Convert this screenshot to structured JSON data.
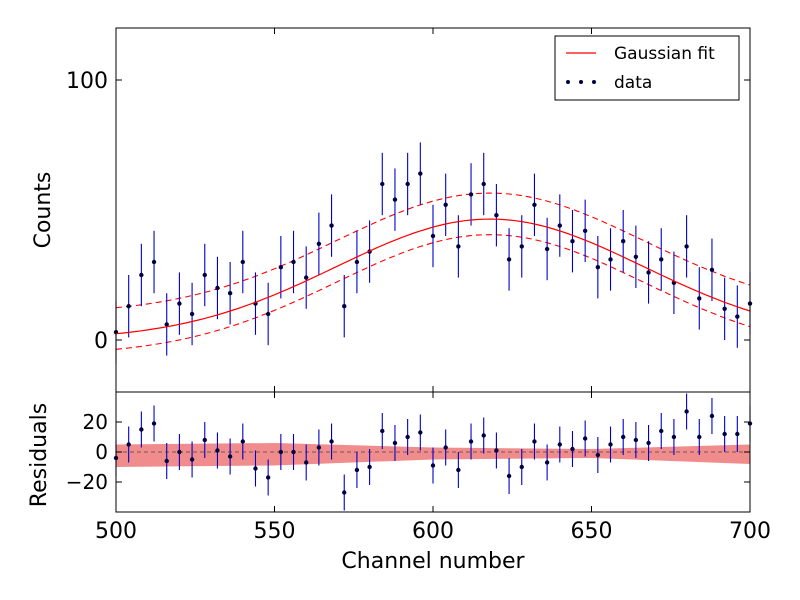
{
  "chart_data": [
    {
      "type": "scatter",
      "panel": "main",
      "title": "",
      "xlabel": "",
      "ylabel": "Counts",
      "xlim": [
        500,
        700
      ],
      "ylim": [
        -20,
        120
      ],
      "yticks": [
        0,
        100
      ],
      "grid": false,
      "legend": {
        "placement": "top-right",
        "entries": [
          "Gaussian fit",
          "data"
        ]
      },
      "series": [
        {
          "name": "data",
          "style": "points with vertical error bars",
          "x": [
            500,
            504,
            508,
            512,
            516,
            520,
            524,
            528,
            532,
            536,
            540,
            544,
            548,
            552,
            556,
            560,
            564,
            568,
            572,
            576,
            580,
            584,
            588,
            592,
            596,
            600,
            604,
            608,
            612,
            616,
            620,
            624,
            628,
            632,
            636,
            640,
            644,
            648,
            652,
            656,
            660,
            664,
            668,
            672,
            676,
            680,
            684,
            688,
            692,
            696,
            700
          ],
          "values": [
            3,
            13,
            25,
            30,
            6,
            14,
            10,
            25,
            20,
            18,
            30,
            14,
            10,
            28,
            30,
            24,
            37,
            44,
            13,
            30,
            34,
            60,
            54,
            60,
            64,
            40,
            52,
            36,
            56,
            60,
            48,
            31,
            36,
            52,
            35,
            44,
            38,
            42,
            28,
            31,
            38,
            32,
            26,
            31,
            22,
            36,
            16,
            27,
            12,
            9,
            14
          ],
          "yerr": [
            12,
            12,
            12,
            12,
            12,
            12,
            12,
            12,
            12,
            12,
            12,
            12,
            12,
            12,
            12,
            12,
            12,
            12,
            12,
            12,
            12,
            12,
            12,
            12,
            12,
            12,
            12,
            12,
            12,
            12,
            12,
            12,
            12,
            12,
            12,
            12,
            12,
            12,
            12,
            12,
            12,
            12,
            12,
            12,
            12,
            12,
            12,
            12,
            12,
            12,
            12
          ]
        },
        {
          "name": "Gaussian fit",
          "style": "solid red line",
          "function": "gaussian",
          "amplitude": 46.5,
          "center": 618,
          "sigma": 48.5,
          "offset": 0,
          "band_upper_offset": 10,
          "band_lower_offset": -6
        }
      ]
    },
    {
      "type": "scatter",
      "panel": "residuals",
      "title": "",
      "xlabel": "Channel number",
      "ylabel": "Residuals",
      "xlim": [
        500,
        700
      ],
      "ylim": [
        -40,
        40
      ],
      "xticks": [
        500,
        550,
        600,
        650,
        700
      ],
      "yticks": [
        -20,
        0,
        20
      ],
      "grid": false,
      "series": [
        {
          "style": "points with vertical error bars",
          "x": [
            500,
            504,
            508,
            512,
            516,
            520,
            524,
            528,
            532,
            536,
            540,
            544,
            548,
            552,
            556,
            560,
            564,
            568,
            572,
            576,
            580,
            584,
            588,
            592,
            596,
            600,
            604,
            608,
            612,
            616,
            620,
            624,
            628,
            632,
            636,
            640,
            644,
            648,
            652,
            656,
            660,
            664,
            668,
            672,
            676,
            680,
            684,
            688,
            692,
            696,
            700
          ],
          "values": [
            -4,
            5,
            15,
            19,
            -6,
            0,
            -5,
            8,
            1,
            -3,
            7,
            -11,
            -17,
            0,
            0,
            -7,
            3,
            7,
            -27,
            -12,
            -10,
            14,
            6,
            10,
            13,
            -9,
            3,
            -12,
            7,
            11,
            1,
            -16,
            -10,
            7,
            -7,
            5,
            2,
            9,
            -2,
            5,
            10,
            8,
            6,
            14,
            10,
            27,
            10,
            24,
            12,
            12,
            19
          ],
          "yerr": [
            12,
            12,
            12,
            12,
            12,
            12,
            12,
            12,
            12,
            12,
            12,
            12,
            12,
            12,
            12,
            12,
            12,
            12,
            12,
            12,
            12,
            12,
            12,
            12,
            12,
            12,
            12,
            12,
            12,
            12,
            12,
            12,
            12,
            12,
            12,
            12,
            12,
            12,
            12,
            12,
            12,
            12,
            12,
            12,
            12,
            12,
            12,
            12,
            12,
            12,
            12
          ]
        },
        {
          "style": "shaded red confidence band around zero",
          "x": [
            500,
            550,
            600,
            650,
            700
          ],
          "upper": [
            5,
            6,
            3,
            2,
            5
          ],
          "lower": [
            -10,
            -9,
            -5,
            -4,
            -8
          ]
        }
      ]
    }
  ],
  "colors": {
    "data_marker": "#000040",
    "error_bar": "#0000cc",
    "fit_line": "#ff0000",
    "band_fill": "#f08080"
  },
  "icons": {
    "legend_line": "red-line-icon",
    "legend_points": "three-dots-icon"
  }
}
